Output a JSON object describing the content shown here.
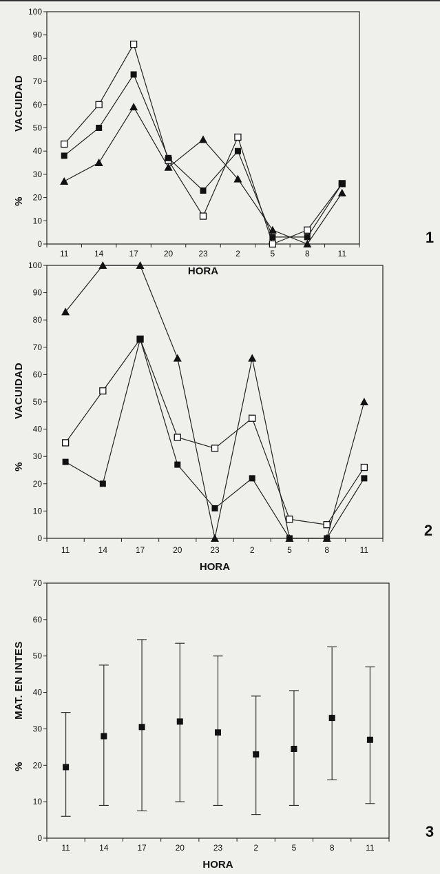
{
  "chart_data": [
    {
      "type": "line",
      "panel_label": "1",
      "xlabel": "HORA",
      "ylabel_pct": "%",
      "ylabel": "VACUIDAD",
      "categories": [
        "11",
        "14",
        "17",
        "20",
        "23",
        "2",
        "5",
        "8",
        "11"
      ],
      "ylim": [
        0,
        100
      ],
      "yticks": [
        0,
        10,
        20,
        30,
        40,
        50,
        60,
        70,
        80,
        90,
        100
      ],
      "grid": false,
      "series": [
        {
          "marker": "open-square",
          "values": [
            43,
            60,
            86,
            36,
            12,
            46,
            0,
            6,
            26
          ]
        },
        {
          "marker": "filled-square",
          "values": [
            38,
            50,
            73,
            37,
            23,
            40,
            3,
            3,
            26
          ]
        },
        {
          "marker": "filled-triangle",
          "values": [
            27,
            35,
            59,
            33,
            45,
            28,
            6,
            0,
            22
          ]
        }
      ]
    },
    {
      "type": "line",
      "panel_label": "2",
      "xlabel": "HORA",
      "ylabel_pct": "%",
      "ylabel": "VACUIDAD",
      "categories": [
        "11",
        "14",
        "17",
        "20",
        "23",
        "2",
        "5",
        "8",
        "11"
      ],
      "ylim": [
        0,
        100
      ],
      "yticks": [
        0,
        10,
        20,
        30,
        40,
        50,
        60,
        70,
        80,
        90,
        100
      ],
      "grid": false,
      "series": [
        {
          "marker": "filled-triangle",
          "values": [
            83,
            100,
            100,
            66,
            0,
            66,
            0,
            0,
            50
          ]
        },
        {
          "marker": "open-square",
          "values": [
            35,
            54,
            73,
            37,
            33,
            44,
            7,
            5,
            26
          ]
        },
        {
          "marker": "filled-square",
          "values": [
            28,
            20,
            73,
            27,
            11,
            22,
            0,
            0,
            22
          ]
        }
      ]
    },
    {
      "type": "scatter",
      "subtype": "error-bar",
      "panel_label": "3",
      "xlabel": "HORA",
      "ylabel_pct": "%",
      "ylabel": "MAT. EN INTES",
      "categories": [
        "11",
        "14",
        "17",
        "20",
        "23",
        "2",
        "5",
        "8",
        "11"
      ],
      "ylim": [
        0,
        70
      ],
      "yticks": [
        0,
        10,
        20,
        30,
        40,
        50,
        60,
        70
      ],
      "grid": false,
      "mean": [
        19.5,
        28,
        30.5,
        32,
        29,
        23,
        24.5,
        33,
        27
      ],
      "low": [
        6,
        9,
        7.5,
        10,
        9,
        6.5,
        9,
        16,
        9.5
      ],
      "high": [
        34.5,
        47.5,
        54.5,
        53.5,
        50,
        39,
        40.5,
        52.5,
        47
      ]
    }
  ]
}
